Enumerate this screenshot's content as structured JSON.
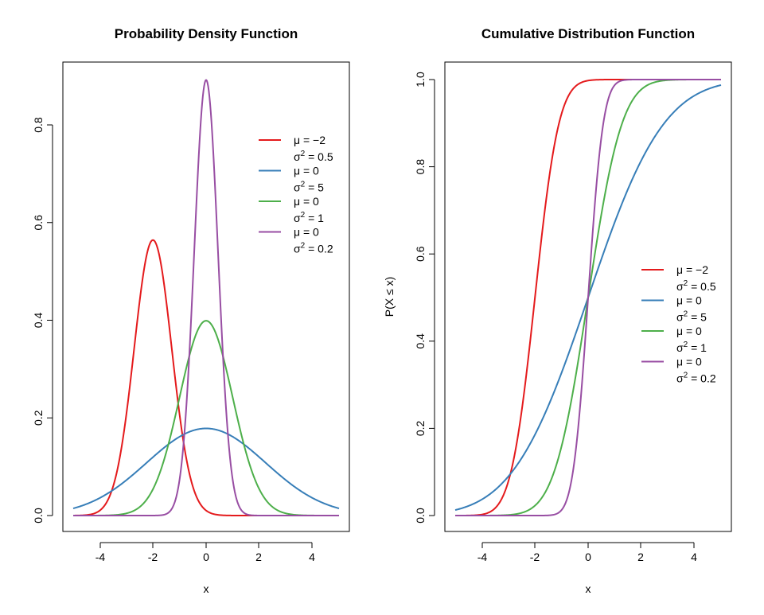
{
  "chart_data": [
    {
      "type": "line",
      "title": "Probability Density Function",
      "xlabel": "x",
      "ylabel": "",
      "xlim": [
        -5,
        5
      ],
      "ylim": [
        0,
        0.9
      ],
      "xticks": [
        "-4",
        "-2",
        "0",
        "2",
        "4"
      ],
      "yticks": [
        "0.0",
        "0.2",
        "0.4",
        "0.6",
        "0.8"
      ],
      "legend_position": "top-right",
      "legend_box": false,
      "function": "density",
      "series": [
        {
          "mu_label": "μ = −2",
          "var_label": "σ² = 0.5",
          "var_base": "σ",
          "var_sup": "2",
          "var_rest": " = 0.5",
          "mu": -2,
          "sigma2": 0.5,
          "color": "#e41a1c"
        },
        {
          "mu_label": "μ = 0",
          "var_label": "σ² = 5",
          "var_base": "σ",
          "var_sup": "2",
          "var_rest": " = 5",
          "mu": 0,
          "sigma2": 5,
          "color": "#377eb8"
        },
        {
          "mu_label": "μ = 0",
          "var_label": "σ² = 1",
          "var_base": "σ",
          "var_sup": "2",
          "var_rest": " = 1",
          "mu": 0,
          "sigma2": 1,
          "color": "#4daf4a"
        },
        {
          "mu_label": "μ = 0",
          "var_label": "σ² = 0.2",
          "var_base": "σ",
          "var_sup": "2",
          "var_rest": " = 0.2",
          "mu": 0,
          "sigma2": 0.2,
          "color": "#984ea3"
        }
      ]
    },
    {
      "type": "line",
      "title": "Cumulative Distribution Function",
      "xlabel": "x",
      "ylabel": "P(X ≤ x)",
      "xlim": [
        -5,
        5
      ],
      "ylim": [
        0,
        1
      ],
      "xticks": [
        "-4",
        "-2",
        "0",
        "2",
        "4"
      ],
      "yticks": [
        "0.0",
        "0.2",
        "0.4",
        "0.6",
        "0.8",
        "1.0"
      ],
      "legend_position": "right",
      "legend_box": false,
      "function": "cumulative",
      "series": [
        {
          "mu_label": "μ = −2",
          "var_label": "σ² = 0.5",
          "var_base": "σ",
          "var_sup": "2",
          "var_rest": " = 0.5",
          "mu": -2,
          "sigma2": 0.5,
          "color": "#e41a1c"
        },
        {
          "mu_label": "μ = 0",
          "var_label": "σ² = 5",
          "var_base": "σ",
          "var_sup": "2",
          "var_rest": " = 5",
          "mu": 0,
          "sigma2": 5,
          "color": "#377eb8"
        },
        {
          "mu_label": "μ = 0",
          "var_label": "σ² = 1",
          "var_base": "σ",
          "var_sup": "2",
          "var_rest": " = 1",
          "mu": 0,
          "sigma2": 1,
          "color": "#4daf4a"
        },
        {
          "mu_label": "μ = 0",
          "var_label": "σ² = 0.2",
          "var_base": "σ",
          "var_sup": "2",
          "var_rest": " = 0.2",
          "mu": 0,
          "sigma2": 0.2,
          "color": "#984ea3"
        }
      ]
    }
  ]
}
